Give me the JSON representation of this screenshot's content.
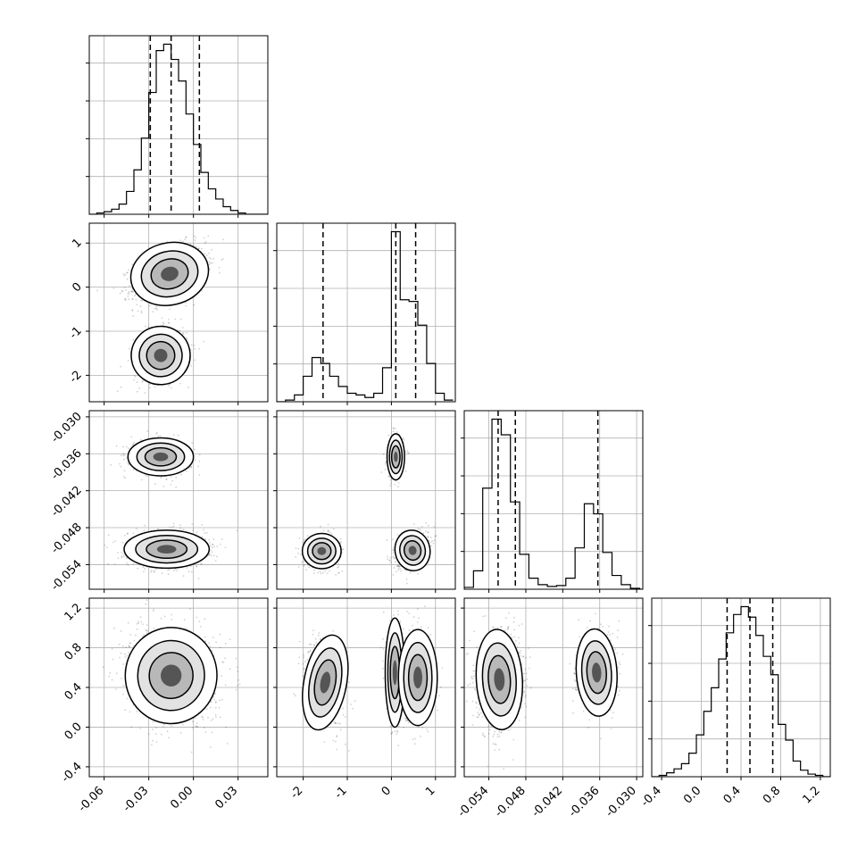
{
  "chart_data": {
    "type": "corner",
    "title": "",
    "grid": true,
    "parameters": [
      {
        "range": [
          -0.07,
          0.05
        ],
        "ticks": [
          "-0.06",
          "-0.03",
          "0.00",
          "0.03"
        ],
        "tick_values": [
          -0.06,
          -0.03,
          0.0,
          0.03
        ],
        "quantiles": [
          -0.029,
          -0.015,
          0.004
        ],
        "hist_edges": [
          -0.07,
          -0.065,
          -0.06,
          -0.055,
          -0.05,
          -0.045,
          -0.04,
          -0.035,
          -0.03,
          -0.025,
          -0.02,
          -0.015,
          -0.01,
          -0.005,
          0.0,
          0.005,
          0.01,
          0.015,
          0.02,
          0.025,
          0.03,
          0.035,
          0.04,
          0.045,
          0.05
        ],
        "hist_counts": [
          0,
          1,
          2,
          4,
          8,
          18,
          35,
          60,
          96,
          129,
          134,
          122,
          105,
          79,
          55,
          33,
          20,
          12,
          6,
          3,
          1,
          0,
          0,
          0
        ]
      },
      {
        "range": [
          -2.6,
          1.45
        ],
        "ticks": [
          "-2",
          "-1",
          "0",
          "1"
        ],
        "tick_values": [
          -2,
          -1,
          0,
          1
        ],
        "quantiles": [
          -1.55,
          0.1,
          0.55
        ],
        "hist_edges": [
          -2.6,
          -2.4,
          -2.2,
          -2.0,
          -1.8,
          -1.6,
          -1.4,
          -1.2,
          -1.0,
          -0.8,
          -0.6,
          -0.4,
          -0.2,
          0.0,
          0.2,
          0.4,
          0.6,
          0.8,
          1.0,
          1.2,
          1.4
        ],
        "hist_counts": [
          0,
          2,
          8,
          30,
          52,
          45,
          30,
          18,
          10,
          8,
          5,
          10,
          40,
          200,
          120,
          118,
          90,
          45,
          10,
          2
        ]
      },
      {
        "range": [
          -0.058,
          -0.029
        ],
        "ticks": [
          "-0.054",
          "-0.048",
          "-0.042",
          "-0.036",
          "-0.030"
        ],
        "tick_values": [
          -0.054,
          -0.048,
          -0.042,
          -0.036,
          -0.03
        ],
        "quantiles": [
          -0.0525,
          -0.0497,
          -0.0363
        ],
        "hist_edges": [
          -0.058,
          -0.0565,
          -0.055,
          -0.0535,
          -0.052,
          -0.0505,
          -0.049,
          -0.0475,
          -0.046,
          -0.0445,
          -0.043,
          -0.0415,
          -0.04,
          -0.0385,
          -0.037,
          -0.0355,
          -0.034,
          -0.0325,
          -0.031,
          -0.0295,
          -0.028
        ],
        "hist_counts": [
          2,
          20,
          110,
          185,
          168,
          95,
          38,
          12,
          5,
          3,
          4,
          12,
          45,
          93,
          82,
          40,
          15,
          5,
          1,
          0
        ]
      },
      {
        "range": [
          -0.5,
          1.3
        ],
        "ticks": [
          "-0.4",
          "0.0",
          "0.4",
          "0.8",
          "1.2"
        ],
        "tick_values": [
          -0.4,
          0.0,
          0.4,
          0.8,
          1.2
        ],
        "quantiles": [
          0.26,
          0.49,
          0.72
        ],
        "hist_edges": [
          -0.5,
          -0.425,
          -0.35,
          -0.275,
          -0.2,
          -0.125,
          -0.05,
          0.025,
          0.1,
          0.175,
          0.25,
          0.325,
          0.4,
          0.475,
          0.55,
          0.625,
          0.7,
          0.775,
          0.85,
          0.925,
          1.0,
          1.075,
          1.15,
          1.225,
          1.3
        ],
        "hist_counts": [
          0,
          1,
          3,
          6,
          10,
          18,
          32,
          50,
          68,
          90,
          110,
          124,
          130,
          122,
          108,
          92,
          78,
          40,
          28,
          12,
          5,
          2,
          1,
          0
        ]
      }
    ],
    "modes": {
      "1_0": [
        {
          "cx": -0.016,
          "cy": 0.3,
          "sx": 0.012,
          "sy": 0.32,
          "w": 0.68,
          "r": 0.4
        },
        {
          "cx": -0.022,
          "cy": -1.55,
          "sx": 0.009,
          "sy": 0.3,
          "w": 0.32,
          "r": 0.2
        }
      ],
      "2_0": [
        {
          "cx": -0.018,
          "cy": -0.0515,
          "sx": 0.013,
          "sy": 0.0014,
          "w": 0.68,
          "r": 0
        },
        {
          "cx": -0.022,
          "cy": -0.0365,
          "sx": 0.01,
          "sy": 0.0014,
          "w": 0.32,
          "r": 0
        }
      ],
      "2_1": [
        {
          "cx": 0.1,
          "cy": -0.0365,
          "sx": 0.09,
          "sy": 0.0017,
          "w": 0.3,
          "r": 0
        },
        {
          "cx": -1.58,
          "cy": -0.0518,
          "sx": 0.2,
          "sy": 0.0013,
          "w": 0.32,
          "r": 0
        },
        {
          "cx": 0.48,
          "cy": -0.0517,
          "sx": 0.18,
          "sy": 0.0015,
          "w": 0.38,
          "r": 0.3
        }
      ],
      "3_0": [
        {
          "cx": -0.015,
          "cy": 0.52,
          "sx": 0.014,
          "sy": 0.22,
          "w": 1.0,
          "r": -0.1
        }
      ],
      "3_1": [
        {
          "cx": -1.5,
          "cy": 0.45,
          "sx": 0.22,
          "sy": 0.22,
          "w": 0.32,
          "r": -0.3
        },
        {
          "cx": 0.08,
          "cy": 0.55,
          "sx": 0.1,
          "sy": 0.25,
          "w": 0.34,
          "r": 0
        },
        {
          "cx": 0.6,
          "cy": 0.5,
          "sx": 0.2,
          "sy": 0.22,
          "w": 0.34,
          "r": 0
        }
      ],
      "3_2": [
        {
          "cx": -0.0523,
          "cy": 0.48,
          "sx": 0.0017,
          "sy": 0.23,
          "w": 0.66,
          "r": 0.1
        },
        {
          "cx": -0.0365,
          "cy": 0.55,
          "sx": 0.0015,
          "sy": 0.2,
          "w": 0.34,
          "r": 0.1
        }
      ]
    }
  }
}
